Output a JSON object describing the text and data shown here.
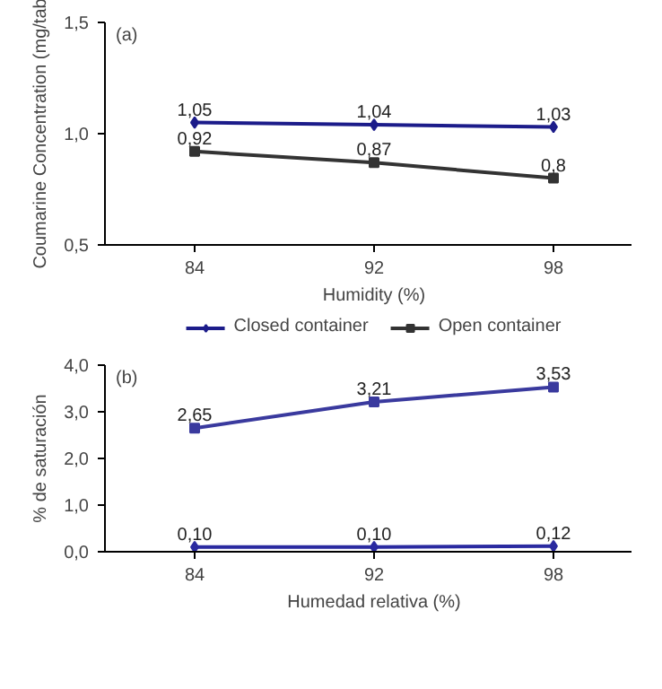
{
  "chart_data": [
    {
      "type": "line",
      "categories": [
        "84",
        "92",
        "98"
      ],
      "xlabel": "Humidity (%)",
      "ylabel": "Coumarine Concentration (mg/tab",
      "annotations": [
        "(a)"
      ],
      "ylim": [
        0.5,
        1.5
      ],
      "yticks": [
        {
          "value": 0.5,
          "label": "0,5"
        },
        {
          "value": 1.0,
          "label": "1,0"
        },
        {
          "value": 1.5,
          "label": "1,5"
        }
      ],
      "legend": "bottom",
      "grid": false,
      "series": [
        {
          "name": "Closed container",
          "color": "#1c1c8a",
          "marker": "diamond",
          "values": [
            1.05,
            1.04,
            1.03
          ],
          "value_labels": [
            "1,05",
            "1,04",
            "1,03"
          ]
        },
        {
          "name": "Open container",
          "color": "#333333",
          "marker": "square",
          "values": [
            0.92,
            0.87,
            0.8
          ],
          "value_labels": [
            "0,92",
            "0,87",
            "0,8"
          ]
        }
      ]
    },
    {
      "type": "line",
      "categories": [
        "84",
        "92",
        "98"
      ],
      "xlabel": "Humedad relativa (%)",
      "ylabel": "% de saturación",
      "annotations": [
        "(b)"
      ],
      "ylim": [
        0,
        4
      ],
      "yticks": [
        {
          "value": 0,
          "label": "0,0"
        },
        {
          "value": 1,
          "label": "1,0"
        },
        {
          "value": 2,
          "label": "2,0"
        },
        {
          "value": 3,
          "label": "3,0"
        },
        {
          "value": 4,
          "label": "4,0"
        }
      ],
      "grid": false,
      "series": [
        {
          "color": "#3a3a9e",
          "marker": "square",
          "values": [
            2.65,
            3.21,
            3.53
          ],
          "value_labels": [
            "2,65",
            "3,21",
            "3,53"
          ]
        },
        {
          "color": "#2a2aa0",
          "marker": "diamond",
          "values": [
            0.1,
            0.1,
            0.12
          ],
          "value_labels": [
            "0,10",
            "0,10",
            "0,12"
          ]
        }
      ]
    }
  ]
}
